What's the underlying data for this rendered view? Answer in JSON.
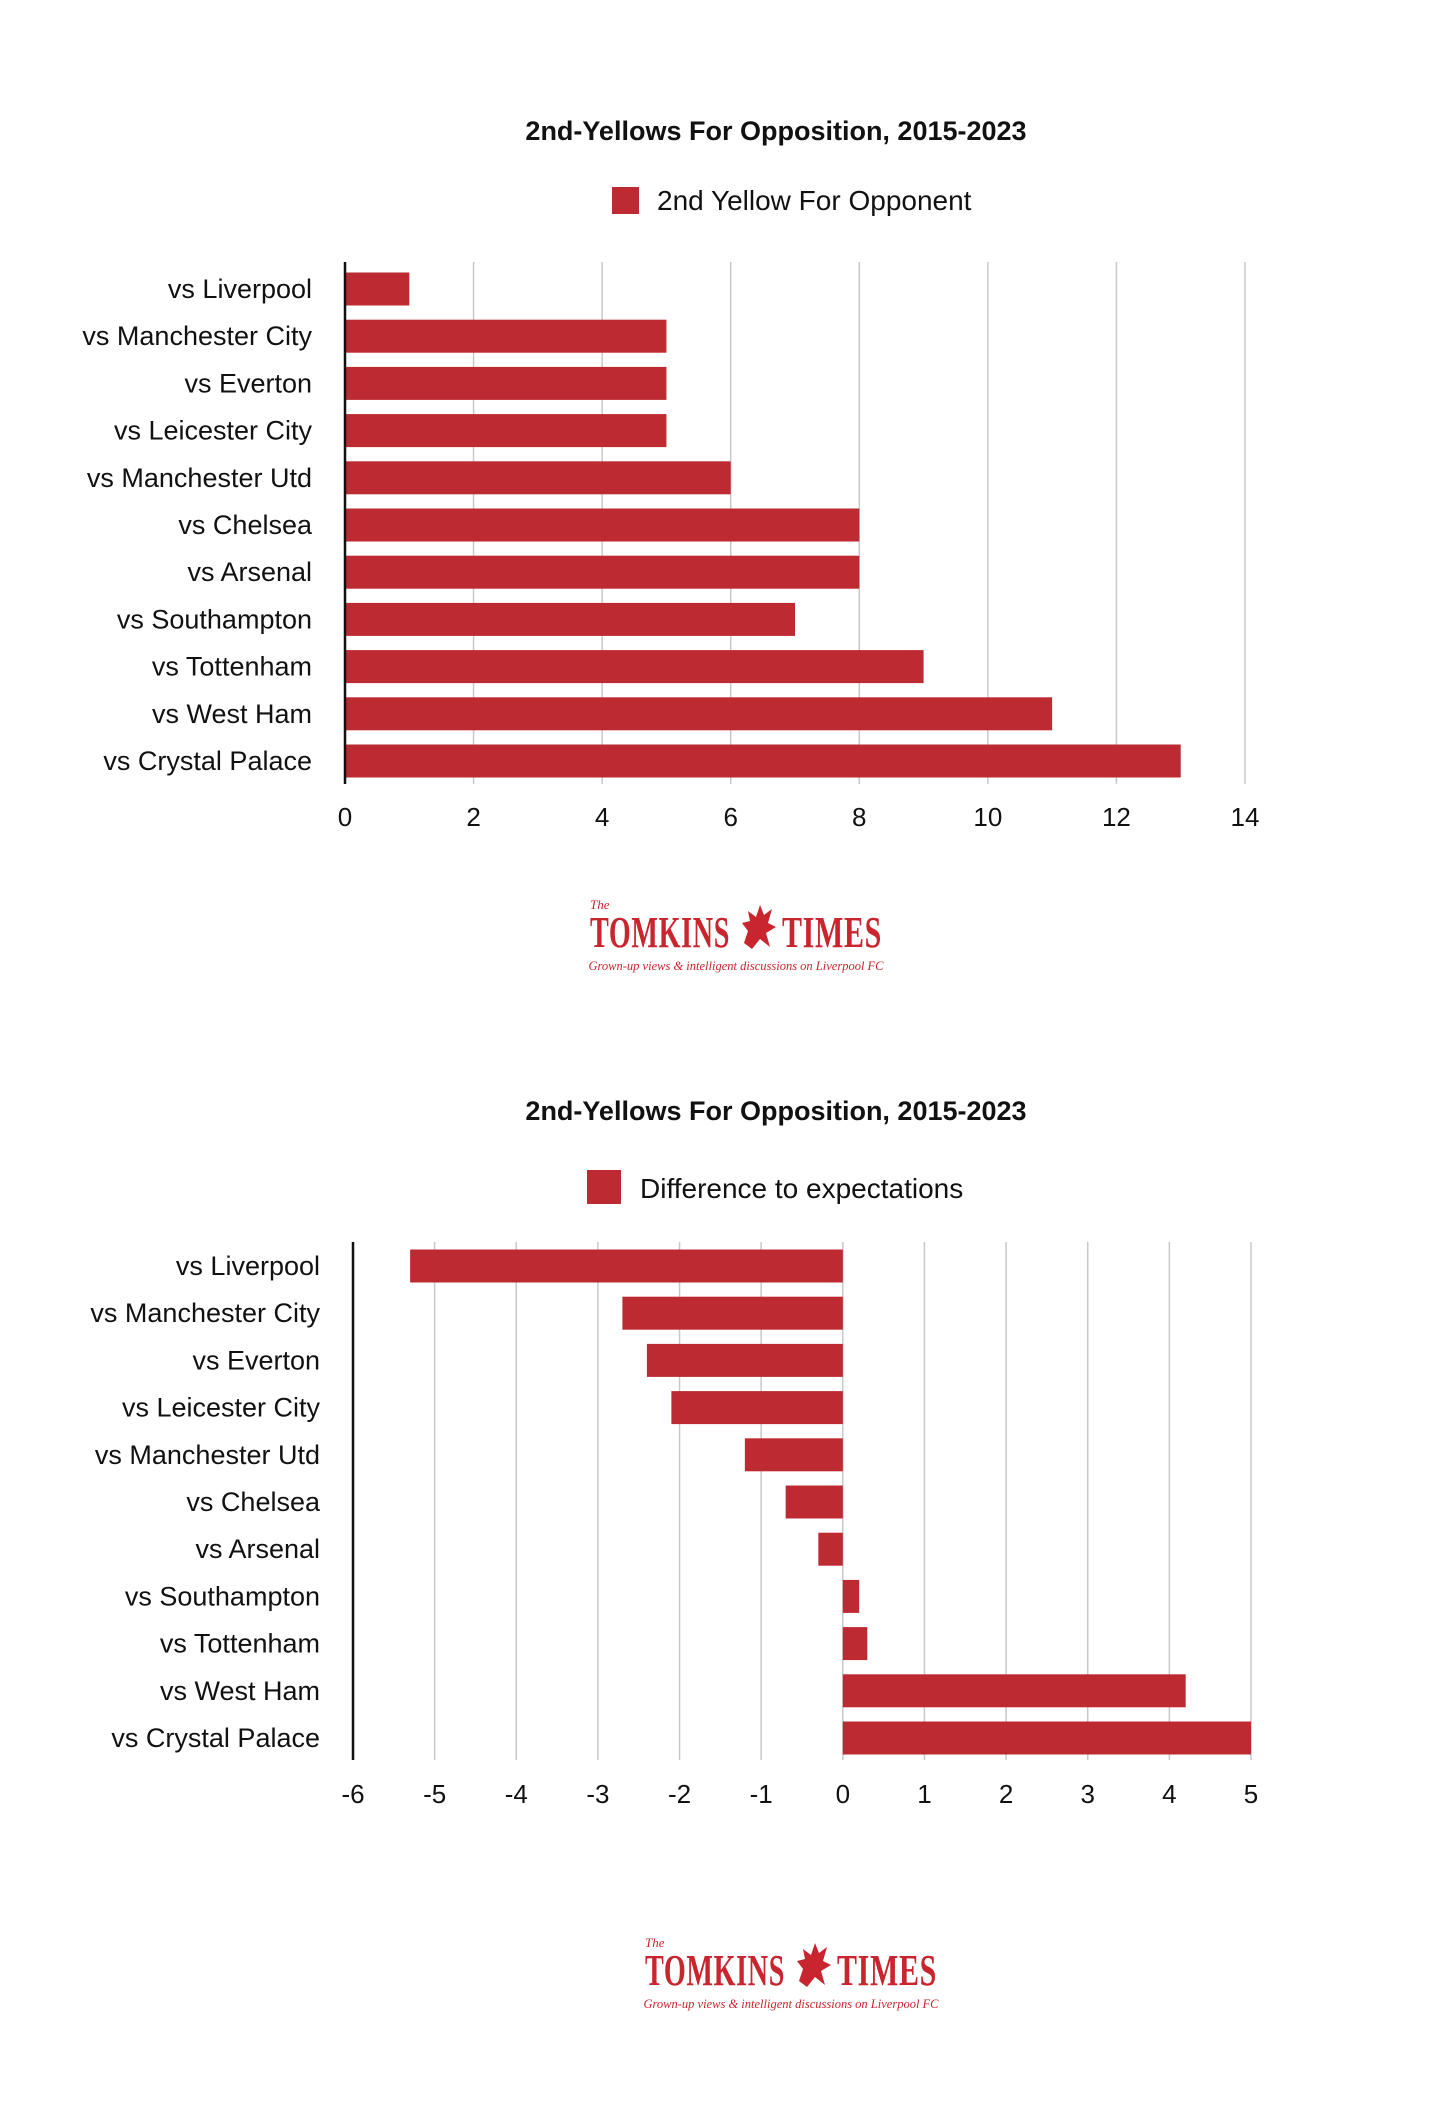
{
  "colors": {
    "bar": "#be2a32",
    "logo": "#c9252e"
  },
  "logo": {
    "the": "The",
    "left": "TOMKINS",
    "right": "TIMES",
    "tagline": "Grown-up views & intelligent discussions on Liverpool FC",
    "emblem": "liverbird-icon"
  },
  "chart_data": [
    {
      "type": "bar",
      "orientation": "horizontal",
      "title": "2nd-Yellows For Opposition, 2015-2023",
      "categories": [
        "vs Liverpool",
        "vs Manchester City",
        "vs Everton",
        "vs Leicester City",
        "vs Manchester Utd",
        "vs Chelsea",
        "vs Arsenal",
        "vs Southampton",
        "vs Tottenham",
        "vs West Ham",
        "vs Crystal Palace"
      ],
      "series": [
        {
          "name": "2nd Yellow For Opponent",
          "values": [
            1,
            5,
            5,
            5,
            6,
            8,
            8,
            7,
            9,
            11,
            13
          ]
        }
      ],
      "xlim": [
        0,
        14
      ],
      "xticks": [
        "0",
        "2",
        "4",
        "6",
        "8",
        "10",
        "12",
        "14"
      ],
      "grid": true,
      "legend": "top-center"
    },
    {
      "type": "bar",
      "orientation": "horizontal",
      "title": "2nd-Yellows For Opposition, 2015-2023",
      "categories": [
        "vs Liverpool",
        "vs Manchester City",
        "vs Everton",
        "vs Leicester City",
        "vs Manchester Utd",
        "vs Chelsea",
        "vs Arsenal",
        "vs Southampton",
        "vs Tottenham",
        "vs West Ham",
        "vs Crystal Palace"
      ],
      "series": [
        {
          "name": "Difference to expectations",
          "values": [
            -5.3,
            -2.7,
            -2.4,
            -2.1,
            -1.2,
            -0.7,
            -0.3,
            0.2,
            0.3,
            4.2,
            5.0
          ]
        }
      ],
      "xlim": [
        -6,
        5
      ],
      "xticks": [
        "-6",
        "-5",
        "-4",
        "-3",
        "-2",
        "-1",
        "0",
        "1",
        "2",
        "3",
        "4",
        "5"
      ],
      "grid": true,
      "legend": "top-center"
    }
  ]
}
